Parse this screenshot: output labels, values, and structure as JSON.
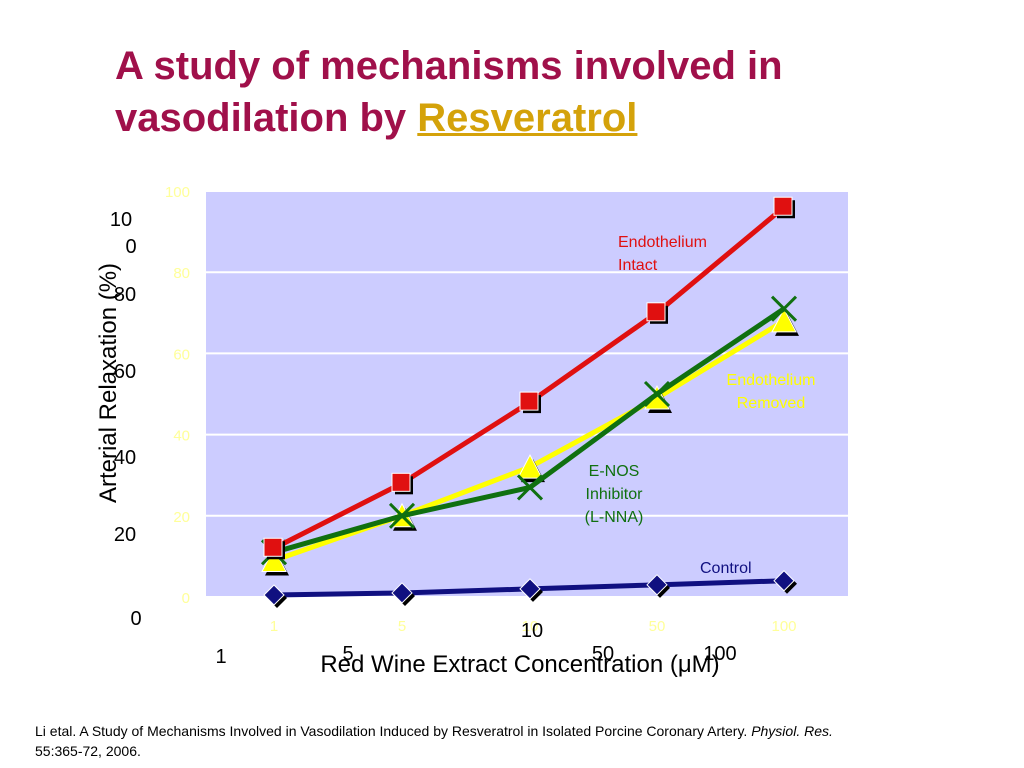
{
  "slide": {
    "title_line1": "A study of mechanisms involved in",
    "title_line2_prefix": "vasodilation by ",
    "title_highlight": "Resveratrol",
    "citation_main": "Li etal. A Study of Mechanisms Involved in Vasodilation Induced by Resveratrol in Isolated Porcine Coronary Artery. ",
    "citation_journal": "Physiol. Res.",
    "citation_volume": "55:365-72, 2006."
  },
  "colors": {
    "title": "#a0104a",
    "highlight": "#d4a20a",
    "plot_background": "#ccccff",
    "faint_tick": "#ffff99"
  },
  "chart_data": {
    "type": "line",
    "xlabel": "Red Wine Extract Concentration (μM)",
    "ylabel": "Arterial Relaxation (%)",
    "x": [
      1,
      5,
      10,
      50,
      100
    ],
    "ylim": [
      0,
      100
    ],
    "grid": true,
    "faint_y_ticks": [
      "100",
      "80",
      "60",
      "40",
      "20",
      "0"
    ],
    "faint_x_ticks": [
      "1",
      "5",
      "10",
      "50",
      "100"
    ],
    "overlay_y_ticks": [
      "10",
      "0",
      "80",
      "60",
      "40",
      "20",
      "0"
    ],
    "overlay_x_ticks": [
      "1",
      "5",
      "10",
      "50",
      "100"
    ],
    "series": [
      {
        "name": "Endothelium Intact",
        "label_lines": [
          "Endothelium",
          "Intact"
        ],
        "color": "#e01010",
        "marker": "square",
        "values": [
          12,
          28,
          48,
          70,
          96
        ]
      },
      {
        "name": "Endothelium Removed",
        "label_lines": [
          "Endothelium",
          "Removed"
        ],
        "color": "#ffff00",
        "marker": "triangle",
        "values": [
          9,
          20,
          32,
          49,
          68
        ]
      },
      {
        "name": "E-NOS Inhibitor (L-NNA)",
        "label_lines": [
          "E-NOS",
          "Inhibitor",
          "(L-NNA)"
        ],
        "color": "#107010",
        "marker": "x",
        "values": [
          11,
          20,
          27,
          50,
          71
        ]
      },
      {
        "name": "Control",
        "label_lines": [
          "Control"
        ],
        "color": "#101080",
        "marker": "diamond",
        "values": [
          0.5,
          1,
          2,
          3,
          4
        ]
      }
    ]
  }
}
